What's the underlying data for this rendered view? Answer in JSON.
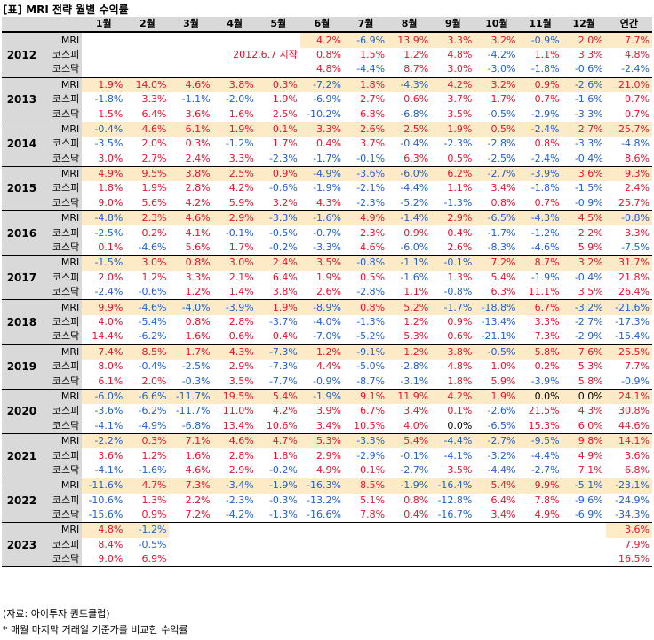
{
  "title": "[표] MRI 전략 월별 수익률",
  "headers": [
    "1월",
    "2월",
    "3월",
    "4월",
    "5월",
    "6월",
    "7월",
    "8월",
    "9월",
    "10월",
    "11월",
    "12월",
    "연간"
  ],
  "note_2012": "2012.6.7 시작",
  "years": [
    {
      "year": "2012",
      "rows": [
        {
          "label": "MRI",
          "values": [
            "",
            "",
            "",
            "",
            "",
            "4.2%",
            "-6.9%",
            "13.9%",
            "3.3%",
            "3.2%",
            "-0.9%",
            "2.0%",
            "7.7%"
          ]
        },
        {
          "label": "코스피",
          "values": [
            "",
            "",
            "",
            "",
            "",
            "0.8%",
            "1.5%",
            "1.2%",
            "4.8%",
            "-4.2%",
            "1.1%",
            "3.3%",
            "4.8%"
          ]
        },
        {
          "label": "코스닥",
          "values": [
            "",
            "",
            "",
            "",
            "",
            "4.8%",
            "-4.4%",
            "8.7%",
            "3.0%",
            "-3.0%",
            "-1.8%",
            "-0.6%",
            "-2.4%"
          ]
        }
      ]
    },
    {
      "year": "2013",
      "rows": [
        {
          "label": "MRI",
          "values": [
            "1.9%",
            "14.0%",
            "4.6%",
            "3.8%",
            "0.3%",
            "-7.2%",
            "1.8%",
            "-4.3%",
            "4.2%",
            "3.2%",
            "0.9%",
            "-2.6%",
            "21.0%"
          ]
        },
        {
          "label": "코스피",
          "values": [
            "-1.8%",
            "3.3%",
            "-1.1%",
            "-2.0%",
            "1.9%",
            "-6.9%",
            "2.7%",
            "0.6%",
            "3.7%",
            "1.7%",
            "0.7%",
            "-1.6%",
            "0.7%"
          ]
        },
        {
          "label": "코스닥",
          "values": [
            "1.5%",
            "6.4%",
            "3.6%",
            "1.6%",
            "2.5%",
            "-10.2%",
            "6.8%",
            "-6.8%",
            "3.5%",
            "-0.5%",
            "-2.9%",
            "-3.3%",
            "0.7%"
          ]
        }
      ]
    },
    {
      "year": "2014",
      "rows": [
        {
          "label": "MRI",
          "values": [
            "-0.4%",
            "4.6%",
            "6.1%",
            "1.9%",
            "0.1%",
            "3.3%",
            "2.6%",
            "2.5%",
            "1.9%",
            "0.5%",
            "-2.4%",
            "2.7%",
            "25.7%"
          ]
        },
        {
          "label": "코스피",
          "values": [
            "-3.5%",
            "2.0%",
            "0.3%",
            "-1.2%",
            "1.7%",
            "0.4%",
            "3.7%",
            "-0.4%",
            "-2.3%",
            "-2.8%",
            "0.8%",
            "-3.3%",
            "-4.8%"
          ]
        },
        {
          "label": "코스닥",
          "values": [
            "3.0%",
            "2.7%",
            "2.4%",
            "3.3%",
            "-2.3%",
            "-1.7%",
            "-0.1%",
            "6.3%",
            "0.5%",
            "-2.5%",
            "-2.4%",
            "-0.4%",
            "8.6%"
          ]
        }
      ]
    },
    {
      "year": "2015",
      "rows": [
        {
          "label": "MRI",
          "values": [
            "4.9%",
            "9.5%",
            "3.8%",
            "2.5%",
            "0.9%",
            "-4.9%",
            "-3.6%",
            "-6.0%",
            "6.2%",
            "-2.7%",
            "-3.9%",
            "3.6%",
            "9.3%"
          ]
        },
        {
          "label": "코스피",
          "values": [
            "1.8%",
            "1.9%",
            "2.8%",
            "4.2%",
            "-0.6%",
            "-1.9%",
            "-2.1%",
            "-4.4%",
            "1.1%",
            "3.4%",
            "-1.8%",
            "-1.5%",
            "2.4%"
          ]
        },
        {
          "label": "코스닥",
          "values": [
            "9.0%",
            "5.6%",
            "4.2%",
            "5.9%",
            "3.2%",
            "4.3%",
            "-2.3%",
            "-5.2%",
            "-1.3%",
            "0.8%",
            "0.7%",
            "-0.9%",
            "25.7%"
          ]
        }
      ]
    },
    {
      "year": "2016",
      "rows": [
        {
          "label": "MRI",
          "values": [
            "-4.8%",
            "2.3%",
            "4.6%",
            "2.9%",
            "-3.3%",
            "-1.6%",
            "4.9%",
            "-1.4%",
            "2.9%",
            "-6.5%",
            "-4.3%",
            "4.5%",
            "-0.8%"
          ]
        },
        {
          "label": "코스피",
          "values": [
            "-2.5%",
            "0.2%",
            "4.1%",
            "-0.1%",
            "-0.5%",
            "-0.7%",
            "2.3%",
            "0.9%",
            "0.4%",
            "-1.7%",
            "-1.2%",
            "2.2%",
            "3.3%"
          ]
        },
        {
          "label": "코스닥",
          "values": [
            "0.1%",
            "-4.6%",
            "5.6%",
            "1.7%",
            "-0.2%",
            "-3.3%",
            "4.6%",
            "-6.0%",
            "2.6%",
            "-8.3%",
            "-4.6%",
            "5.9%",
            "-7.5%"
          ]
        }
      ]
    },
    {
      "year": "2017",
      "rows": [
        {
          "label": "MRI",
          "values": [
            "-1.5%",
            "3.0%",
            "0.8%",
            "3.0%",
            "2.4%",
            "3.5%",
            "-0.8%",
            "-1.1%",
            "-0.1%",
            "7.2%",
            "8.7%",
            "3.2%",
            "31.7%"
          ]
        },
        {
          "label": "코스피",
          "values": [
            "2.0%",
            "1.2%",
            "3.3%",
            "2.1%",
            "6.4%",
            "1.9%",
            "0.5%",
            "-1.6%",
            "1.3%",
            "5.4%",
            "-1.9%",
            "-0.4%",
            "21.8%"
          ]
        },
        {
          "label": "코스닥",
          "values": [
            "-2.4%",
            "-0.6%",
            "1.2%",
            "1.4%",
            "3.8%",
            "2.6%",
            "-2.8%",
            "1.1%",
            "-0.8%",
            "6.3%",
            "11.1%",
            "3.5%",
            "26.4%"
          ]
        }
      ]
    },
    {
      "year": "2018",
      "rows": [
        {
          "label": "MRI",
          "values": [
            "9.9%",
            "-4.6%",
            "-4.0%",
            "-3.9%",
            "1.9%",
            "-8.9%",
            "0.8%",
            "5.2%",
            "-1.7%",
            "-18.8%",
            "6.7%",
            "-3.2%",
            "-21.6%"
          ]
        },
        {
          "label": "코스피",
          "values": [
            "4.0%",
            "-5.4%",
            "0.8%",
            "2.8%",
            "-3.7%",
            "-4.0%",
            "-1.3%",
            "1.2%",
            "0.9%",
            "-13.4%",
            "3.3%",
            "-2.7%",
            "-17.3%"
          ]
        },
        {
          "label": "코스닥",
          "values": [
            "14.4%",
            "-6.2%",
            "1.6%",
            "0.6%",
            "0.4%",
            "-7.0%",
            "-5.2%",
            "5.3%",
            "0.6%",
            "-21.1%",
            "7.3%",
            "-2.9%",
            "-15.4%"
          ]
        }
      ]
    },
    {
      "year": "2019",
      "rows": [
        {
          "label": "MRI",
          "values": [
            "7.4%",
            "8.5%",
            "1.7%",
            "4.3%",
            "-7.3%",
            "1.2%",
            "-9.1%",
            "1.2%",
            "3.8%",
            "-0.5%",
            "5.8%",
            "7.6%",
            "25.5%"
          ]
        },
        {
          "label": "코스피",
          "values": [
            "8.0%",
            "-0.4%",
            "-2.5%",
            "2.9%",
            "-7.3%",
            "4.4%",
            "-5.0%",
            "-2.8%",
            "4.8%",
            "1.0%",
            "0.2%",
            "5.3%",
            "7.7%"
          ]
        },
        {
          "label": "코스닥",
          "values": [
            "6.1%",
            "2.0%",
            "-0.3%",
            "3.5%",
            "-7.7%",
            "-0.9%",
            "-8.7%",
            "-3.1%",
            "1.8%",
            "5.9%",
            "-3.9%",
            "5.8%",
            "-0.9%"
          ]
        }
      ]
    },
    {
      "year": "2020",
      "rows": [
        {
          "label": "MRI",
          "values": [
            "-6.0%",
            "-6.6%",
            "-11.7%",
            "19.5%",
            "5.4%",
            "-1.9%",
            "9.1%",
            "11.9%",
            "4.2%",
            "1.9%",
            "0.0%",
            "0.0%",
            "24.1%"
          ]
        },
        {
          "label": "코스피",
          "values": [
            "-3.6%",
            "-6.2%",
            "-11.7%",
            "11.0%",
            "4.2%",
            "3.9%",
            "6.7%",
            "3.4%",
            "0.1%",
            "-2.6%",
            "21.5%",
            "4.3%",
            "30.8%"
          ]
        },
        {
          "label": "코스닥",
          "values": [
            "-4.1%",
            "-4.9%",
            "-6.8%",
            "13.4%",
            "10.6%",
            "3.4%",
            "10.5%",
            "4.0%",
            "0.0%",
            "-6.5%",
            "15.3%",
            "6.0%",
            "44.6%"
          ]
        }
      ]
    },
    {
      "year": "2021",
      "rows": [
        {
          "label": "MRI",
          "values": [
            "-2.2%",
            "0.3%",
            "7.1%",
            "4.6%",
            "4.7%",
            "5.3%",
            "-3.3%",
            "5.4%",
            "-4.4%",
            "-2.7%",
            "-9.5%",
            "9.8%",
            "14.1%"
          ]
        },
        {
          "label": "코스피",
          "values": [
            "3.6%",
            "1.2%",
            "1.6%",
            "2.8%",
            "1.8%",
            "2.9%",
            "-2.9%",
            "-0.1%",
            "-4.1%",
            "-3.2%",
            "-4.4%",
            "4.9%",
            "3.6%"
          ]
        },
        {
          "label": "코스닥",
          "values": [
            "-4.1%",
            "-1.6%",
            "4.6%",
            "2.9%",
            "-0.2%",
            "4.9%",
            "0.1%",
            "-2.7%",
            "3.5%",
            "-4.4%",
            "-2.7%",
            "7.1%",
            "6.8%"
          ]
        }
      ]
    },
    {
      "year": "2022",
      "rows": [
        {
          "label": "MRI",
          "values": [
            "-11.6%",
            "4.7%",
            "7.3%",
            "-3.4%",
            "-1.9%",
            "-16.3%",
            "8.5%",
            "-1.9%",
            "-16.4%",
            "5.4%",
            "9.9%",
            "-5.1%",
            "-23.1%"
          ]
        },
        {
          "label": "코스피",
          "values": [
            "-10.6%",
            "1.3%",
            "2.2%",
            "-2.3%",
            "-0.3%",
            "-13.2%",
            "5.1%",
            "0.8%",
            "-12.8%",
            "6.4%",
            "7.8%",
            "-9.6%",
            "-24.9%"
          ]
        },
        {
          "label": "코스닥",
          "values": [
            "-15.6%",
            "0.9%",
            "7.2%",
            "-4.2%",
            "-1.3%",
            "-16.6%",
            "7.8%",
            "0.4%",
            "-16.7%",
            "3.4%",
            "4.9%",
            "-6.9%",
            "-34.3%"
          ]
        }
      ]
    },
    {
      "year": "2023",
      "rows": [
        {
          "label": "MRI",
          "values": [
            "4.8%",
            "-1.2%",
            "",
            "",
            "",
            "",
            "",
            "",
            "",
            "",
            "",
            "",
            "3.6%"
          ]
        },
        {
          "label": "코스피",
          "values": [
            "8.4%",
            "-0.5%",
            "",
            "",
            "",
            "",
            "",
            "",
            "",
            "",
            "",
            "",
            "7.9%"
          ]
        },
        {
          "label": "코스닥",
          "values": [
            "9.0%",
            "6.9%",
            "",
            "",
            "",
            "",
            "",
            "",
            "",
            "",
            "",
            "",
            "16.5%"
          ]
        }
      ]
    }
  ],
  "footer": {
    "source": "(자료: 아이투자 퀀트클럽)",
    "note": "* 매월 마지막 거래일 기준가를 비교한 수익률"
  }
}
